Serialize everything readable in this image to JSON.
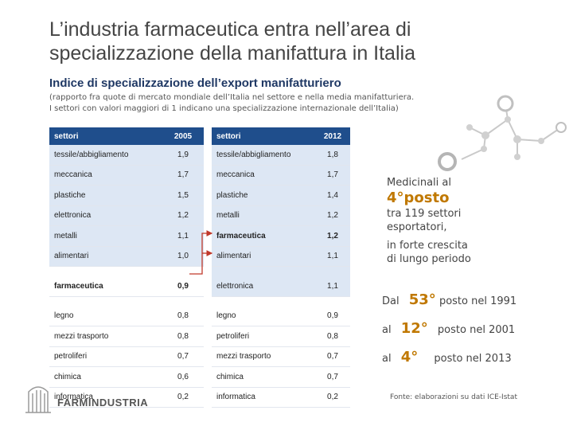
{
  "title": "L’industria farmaceutica entra nell’area di specializzazione della manifattura in Italia",
  "subtitle": "Indice di specializzazione dell’export manifatturiero",
  "note_line1": "(rapporto fra quote di mercato mondiale dell’Italia nel settore e nella media manifatturiera.",
  "note_line2": "I settori con valori maggiori di 1 indicano una specializzazione internazionale dell’Italia)",
  "table2005": {
    "header_sector": "settori",
    "header_year": "2005",
    "rows": [
      {
        "sector": "tessile/abbigliamento",
        "value": "1,9"
      },
      {
        "sector": "meccanica",
        "value": "1,7"
      },
      {
        "sector": "plastiche",
        "value": "1,5"
      },
      {
        "sector": "elettronica",
        "value": "1,2"
      },
      {
        "sector": "metalli",
        "value": "1,1"
      },
      {
        "sector": "alimentari",
        "value": "1,0"
      },
      {
        "sector": "farmaceutica",
        "value": "0,9"
      },
      {
        "sector": "legno",
        "value": "0,8"
      },
      {
        "sector": "mezzi trasporto",
        "value": "0,8"
      },
      {
        "sector": "petroliferi",
        "value": "0,7"
      },
      {
        "sector": "chimica",
        "value": "0,6"
      },
      {
        "sector": "informatica",
        "value": "0,2"
      }
    ]
  },
  "table2012": {
    "header_sector": "settori",
    "header_year": "2012",
    "rows": [
      {
        "sector": "tessile/abbigliamento",
        "value": "1,8"
      },
      {
        "sector": "meccanica",
        "value": "1,7"
      },
      {
        "sector": "plastiche",
        "value": "1,4"
      },
      {
        "sector": "metalli",
        "value": "1,2"
      },
      {
        "sector": "farmaceutica",
        "value": "1,2"
      },
      {
        "sector": "alimentari",
        "value": "1,1"
      },
      {
        "sector": "elettronica",
        "value": "1,1"
      },
      {
        "sector": "legno",
        "value": "0,9"
      },
      {
        "sector": "petroliferi",
        "value": "0,8"
      },
      {
        "sector": "mezzi trasporto",
        "value": "0,7"
      },
      {
        "sector": "chimica",
        "value": "0,7"
      },
      {
        "sector": "informatica",
        "value": "0,2"
      }
    ]
  },
  "callout": {
    "line1": "Medicinali al",
    "big": "4°posto",
    "line2": "tra 119 settori",
    "line3": "esportatori,",
    "line4": "in forte crescita",
    "line5": "di lungo periodo"
  },
  "ranks": [
    {
      "prefix": "Dal",
      "rank": "53°",
      "suffix": "posto nel 1991"
    },
    {
      "prefix": "al",
      "rank": "12°",
      "suffix": "posto nel 2001"
    },
    {
      "prefix": "al",
      "rank": "4°",
      "suffix": "posto nel 2013"
    }
  ],
  "source": "Fonte: elaborazioni su dati ICE-Istat",
  "logo_text": "FARMINDUSTRIA",
  "colors": {
    "header_blue": "#1f4e8c",
    "shade_blue": "#dde7f4",
    "accent_orange": "#c07800",
    "arrow_red": "#c0392b",
    "molecule_gray": "#bdbdbd"
  }
}
